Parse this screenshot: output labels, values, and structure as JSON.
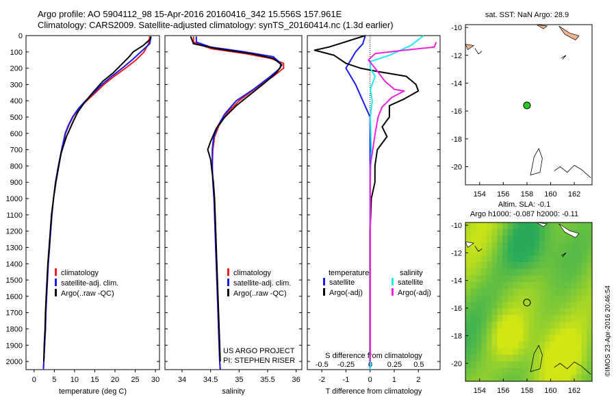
{
  "title_line1": "Argo profile: AO 5904112_98 15-Apr-2016 20160416_342 15.556S 157.961E",
  "title_line2": "Climatology: CARS2009. Satellite-adjusted climatology: synTS_20160414.nc (1.3d earlier)",
  "side_label": "©IMOS 23-Apr-2016 20:46:54",
  "colors": {
    "red": "#ee1c1c",
    "blue": "#1a1aee",
    "black": "#000000",
    "cyan": "#22e6ee",
    "magenta": "#ee22dd",
    "sst_dot": "#22cc22",
    "land": "#f2b490"
  },
  "chart_data": [
    {
      "type": "line",
      "xlabel": "temperature (deg C)",
      "ylabel": "",
      "xlim": [
        -2,
        31
      ],
      "ylim": [
        2050,
        0
      ],
      "xticks": [
        0,
        5,
        10,
        15,
        20,
        25,
        30
      ],
      "yticks": [
        0,
        100,
        200,
        300,
        400,
        500,
        600,
        700,
        800,
        900,
        1000,
        1100,
        1200,
        1300,
        1400,
        1500,
        1600,
        1700,
        1800,
        1900,
        2000
      ],
      "legend": [
        "climatology",
        "satellite-adj. clim.",
        "Argo(..raw -QC)"
      ],
      "series": [
        {
          "name": "climatology",
          "color": "red",
          "points": [
            [
              28.6,
              5
            ],
            [
              28.3,
              50
            ],
            [
              27.2,
              100
            ],
            [
              25.2,
              150
            ],
            [
              22.6,
              200
            ],
            [
              19.8,
              250
            ],
            [
              17.3,
              300
            ],
            [
              15.2,
              350
            ],
            [
              13.0,
              400
            ],
            [
              11.0,
              450
            ],
            [
              9.6,
              500
            ],
            [
              8.6,
              550
            ],
            [
              7.8,
              600
            ],
            [
              6.9,
              700
            ],
            [
              6.0,
              800
            ],
            [
              5.3,
              900
            ],
            [
              4.8,
              1000
            ],
            [
              4.4,
              1100
            ],
            [
              4.1,
              1200
            ],
            [
              3.8,
              1300
            ],
            [
              3.5,
              1400
            ],
            [
              3.3,
              1500
            ],
            [
              3.1,
              1600
            ],
            [
              2.9,
              1700
            ],
            [
              2.8,
              1800
            ],
            [
              2.6,
              1900
            ],
            [
              2.4,
              2000
            ],
            [
              2.3,
              2050
            ]
          ]
        },
        {
          "name": "satellite-adj. clim.",
          "color": "blue",
          "points": [
            [
              28.9,
              5
            ],
            [
              28.6,
              50
            ],
            [
              26.4,
              100
            ],
            [
              24.2,
              150
            ],
            [
              21.8,
              200
            ],
            [
              19.2,
              250
            ],
            [
              16.8,
              300
            ],
            [
              14.8,
              350
            ],
            [
              12.7,
              400
            ],
            [
              10.9,
              450
            ],
            [
              9.5,
              500
            ],
            [
              8.5,
              550
            ],
            [
              7.7,
              600
            ],
            [
              6.8,
              700
            ],
            [
              6.0,
              800
            ],
            [
              5.3,
              900
            ],
            [
              4.8,
              1000
            ],
            [
              4.4,
              1100
            ],
            [
              4.1,
              1200
            ],
            [
              3.8,
              1300
            ],
            [
              3.5,
              1400
            ],
            [
              3.3,
              1500
            ],
            [
              3.1,
              1600
            ],
            [
              2.9,
              1700
            ],
            [
              2.8,
              1800
            ],
            [
              2.6,
              1900
            ],
            [
              2.4,
              2000
            ],
            [
              2.3,
              2050
            ]
          ]
        },
        {
          "name": "Argo(..raw -QC)",
          "color": "black",
          "points": [
            [
              28.8,
              5
            ],
            [
              28.8,
              20
            ],
            [
              27.0,
              60
            ],
            [
              24.5,
              100
            ],
            [
              23.5,
              130
            ],
            [
              21.5,
              180
            ],
            [
              19.5,
              230
            ],
            [
              17.0,
              280
            ],
            [
              14.5,
              350
            ],
            [
              12.2,
              420
            ],
            [
              10.8,
              470
            ],
            [
              9.8,
              520
            ],
            [
              8.9,
              570
            ],
            [
              8.0,
              620
            ],
            [
              7.2,
              680
            ],
            [
              6.7,
              720
            ],
            [
              6.1,
              800
            ],
            [
              5.4,
              900
            ],
            [
              4.8,
              1000
            ],
            [
              4.3,
              1100
            ],
            [
              4.0,
              1200
            ],
            [
              3.7,
              1300
            ],
            [
              3.4,
              1400
            ],
            [
              3.2,
              1500
            ],
            [
              3.0,
              1600
            ],
            [
              2.8,
              1700
            ],
            [
              2.7,
              1800
            ],
            [
              2.5,
              1900
            ],
            [
              2.4,
              2000
            ]
          ]
        }
      ]
    },
    {
      "type": "line",
      "xlabel": "salinity",
      "ylabel": "",
      "xlim": [
        33.7,
        36.1
      ],
      "ylim": [
        2050,
        0
      ],
      "xticks": [
        34,
        34.5,
        35,
        35.5,
        36
      ],
      "legend": [
        "climatology",
        "satellite-adj. clim.",
        "Argo(..raw -QC)"
      ],
      "series": [
        {
          "name": "climatology",
          "color": "red",
          "points": [
            [
              34.2,
              5
            ],
            [
              34.2,
              40
            ],
            [
              34.5,
              80
            ],
            [
              35.1,
              110
            ],
            [
              35.55,
              140
            ],
            [
              35.78,
              170
            ],
            [
              35.78,
              200
            ],
            [
              35.6,
              250
            ],
            [
              35.3,
              320
            ],
            [
              35.0,
              400
            ],
            [
              34.8,
              470
            ],
            [
              34.65,
              550
            ],
            [
              34.57,
              620
            ],
            [
              34.54,
              700
            ],
            [
              34.53,
              800
            ],
            [
              34.54,
              900
            ],
            [
              34.56,
              1000
            ],
            [
              34.58,
              1200
            ],
            [
              34.6,
              1400
            ],
            [
              34.62,
              1600
            ],
            [
              34.64,
              1800
            ],
            [
              34.66,
              2000
            ],
            [
              34.67,
              2050
            ]
          ]
        },
        {
          "name": "satellite-adj. clim.",
          "color": "blue",
          "points": [
            [
              34.25,
              5
            ],
            [
              34.25,
              40
            ],
            [
              34.5,
              70
            ],
            [
              35.1,
              100
            ],
            [
              35.6,
              130
            ],
            [
              35.73,
              170
            ],
            [
              35.72,
              200
            ],
            [
              35.55,
              250
            ],
            [
              35.25,
              330
            ],
            [
              34.95,
              400
            ],
            [
              34.75,
              480
            ],
            [
              34.62,
              560
            ],
            [
              34.55,
              630
            ],
            [
              34.53,
              700
            ],
            [
              34.53,
              800
            ],
            [
              34.54,
              900
            ],
            [
              34.56,
              1000
            ],
            [
              34.58,
              1200
            ],
            [
              34.6,
              1400
            ],
            [
              34.62,
              1600
            ],
            [
              34.64,
              1800
            ],
            [
              34.66,
              2000
            ],
            [
              34.67,
              2050
            ]
          ]
        },
        {
          "name": "Argo(..raw -QC)",
          "color": "black",
          "points": [
            [
              34.15,
              5
            ],
            [
              34.2,
              50
            ],
            [
              34.6,
              80
            ],
            [
              35.2,
              110
            ],
            [
              35.6,
              140
            ],
            [
              35.75,
              180
            ],
            [
              35.65,
              230
            ],
            [
              35.45,
              290
            ],
            [
              35.2,
              360
            ],
            [
              34.95,
              430
            ],
            [
              34.75,
              500
            ],
            [
              34.6,
              570
            ],
            [
              34.5,
              650
            ],
            [
              34.45,
              700
            ],
            [
              34.5,
              760
            ],
            [
              34.52,
              820
            ],
            [
              34.55,
              900
            ],
            [
              34.57,
              1000
            ],
            [
              34.59,
              1200
            ],
            [
              34.61,
              1400
            ],
            [
              34.63,
              1600
            ],
            [
              34.65,
              1800
            ],
            [
              34.67,
              2000
            ]
          ]
        }
      ]
    },
    {
      "type": "line",
      "xlabel": "T difference from climatology",
      "x2label": "S difference from climatology",
      "xlim": [
        -2.6,
        2.9
      ],
      "ylim": [
        2050,
        0
      ],
      "xticks": [
        -2,
        -1,
        0,
        1,
        2
      ],
      "x2ticks": [
        -0.5,
        -0.25,
        0,
        0.25,
        0.5
      ],
      "x2tick_labels": [
        "-0.5",
        "-0.25",
        "0",
        "0.25",
        "0.5"
      ],
      "x2lim": [
        -0.65,
        0.72
      ],
      "legend_temperature": {
        "title": "temperature",
        "items": [
          "satellite",
          "Argo(-adj)"
        ]
      },
      "legend_salinity": {
        "title": "salinity",
        "items": [
          "satellite",
          "Argo(-adj)"
        ]
      },
      "series": [
        {
          "name": "satellite",
          "group": "temperature",
          "color": "blue",
          "axis": "T",
          "points": [
            [
              -0.2,
              0
            ],
            [
              -0.3,
              50
            ],
            [
              -0.6,
              100
            ],
            [
              -0.8,
              150
            ],
            [
              -1.0,
              200
            ],
            [
              -0.6,
              300
            ],
            [
              -0.3,
              400
            ],
            [
              0.0,
              500
            ],
            [
              0.0,
              600
            ],
            [
              0.0,
              700
            ],
            [
              0.0,
              800
            ],
            [
              0.0,
              1000
            ],
            [
              0.0,
              1500
            ],
            [
              0.0,
              2050
            ]
          ]
        },
        {
          "name": "Argo(-adj)",
          "group": "temperature",
          "color": "black",
          "axis": "T",
          "points": [
            [
              -0.2,
              0
            ],
            [
              -1.7,
              70
            ],
            [
              -2.3,
              90
            ],
            [
              -1.5,
              120
            ],
            [
              -1.0,
              170
            ],
            [
              -0.4,
              200
            ],
            [
              0.3,
              220
            ],
            [
              1.5,
              250
            ],
            [
              1.9,
              300
            ],
            [
              2.0,
              340
            ],
            [
              1.4,
              390
            ],
            [
              0.8,
              430
            ],
            [
              0.8,
              500
            ],
            [
              0.5,
              560
            ],
            [
              0.7,
              620
            ],
            [
              0.3,
              700
            ],
            [
              0.2,
              800
            ],
            [
              0.2,
              900
            ],
            [
              0.05,
              1000
            ],
            [
              0.0,
              1200
            ],
            [
              0.0,
              1500
            ],
            [
              0.0,
              2000
            ]
          ]
        },
        {
          "name": "satellite",
          "group": "salinity",
          "color": "cyan",
          "axis": "S",
          "points": [
            [
              0.55,
              0
            ],
            [
              0.42,
              60
            ],
            [
              0.2,
              120
            ],
            [
              0.0,
              160
            ],
            [
              0.0,
              200
            ],
            [
              0.05,
              250
            ],
            [
              0.0,
              330
            ],
            [
              0.02,
              400
            ],
            [
              0.0,
              500
            ],
            [
              0.01,
              700
            ],
            [
              0.0,
              900
            ],
            [
              0.0,
              1200
            ],
            [
              0.0,
              2050
            ]
          ]
        },
        {
          "name": "Argo(-adj)",
          "group": "salinity",
          "color": "magenta",
          "axis": "S",
          "points": [
            [
              0.68,
              40
            ],
            [
              0.66,
              70
            ],
            [
              0.35,
              90
            ],
            [
              0.05,
              110
            ],
            [
              -0.02,
              150
            ],
            [
              0.05,
              200
            ],
            [
              0.15,
              280
            ],
            [
              0.25,
              330
            ],
            [
              0.35,
              340
            ],
            [
              0.22,
              380
            ],
            [
              0.12,
              440
            ],
            [
              0.08,
              500
            ],
            [
              0.05,
              600
            ],
            [
              0.02,
              720
            ],
            [
              0.0,
              800
            ],
            [
              0.0,
              900
            ],
            [
              0.0,
              1200
            ],
            [
              0.0,
              2000
            ]
          ]
        }
      ],
      "annotations": [
        "US ARGO PROJECT",
        "PI: STEPHEN RISER"
      ]
    },
    {
      "type": "map",
      "title": "sat. SST: NaN Argo: 28.9",
      "xlim": [
        152.8,
        163.5
      ],
      "ylim": [
        -21.3,
        -9.8
      ],
      "xticks": [
        154,
        156,
        158,
        160,
        162
      ],
      "yticks": [
        -10,
        -12,
        -14,
        -16,
        -18,
        -20
      ],
      "argo_position": [
        158,
        -15.6
      ]
    },
    {
      "type": "heatmap",
      "title_line1": "Altim. SLA: -0.1",
      "title_line2": "Argo h1000: -0.087 h2000: -0.11",
      "xlim": [
        152.8,
        163.5
      ],
      "ylim": [
        -21.3,
        -9.8
      ],
      "xticks": [
        154,
        156,
        158,
        160,
        162
      ],
      "yticks": [
        -10,
        -12,
        -14,
        -16,
        -18,
        -20
      ],
      "argo_position": [
        158,
        -15.6
      ]
    }
  ]
}
